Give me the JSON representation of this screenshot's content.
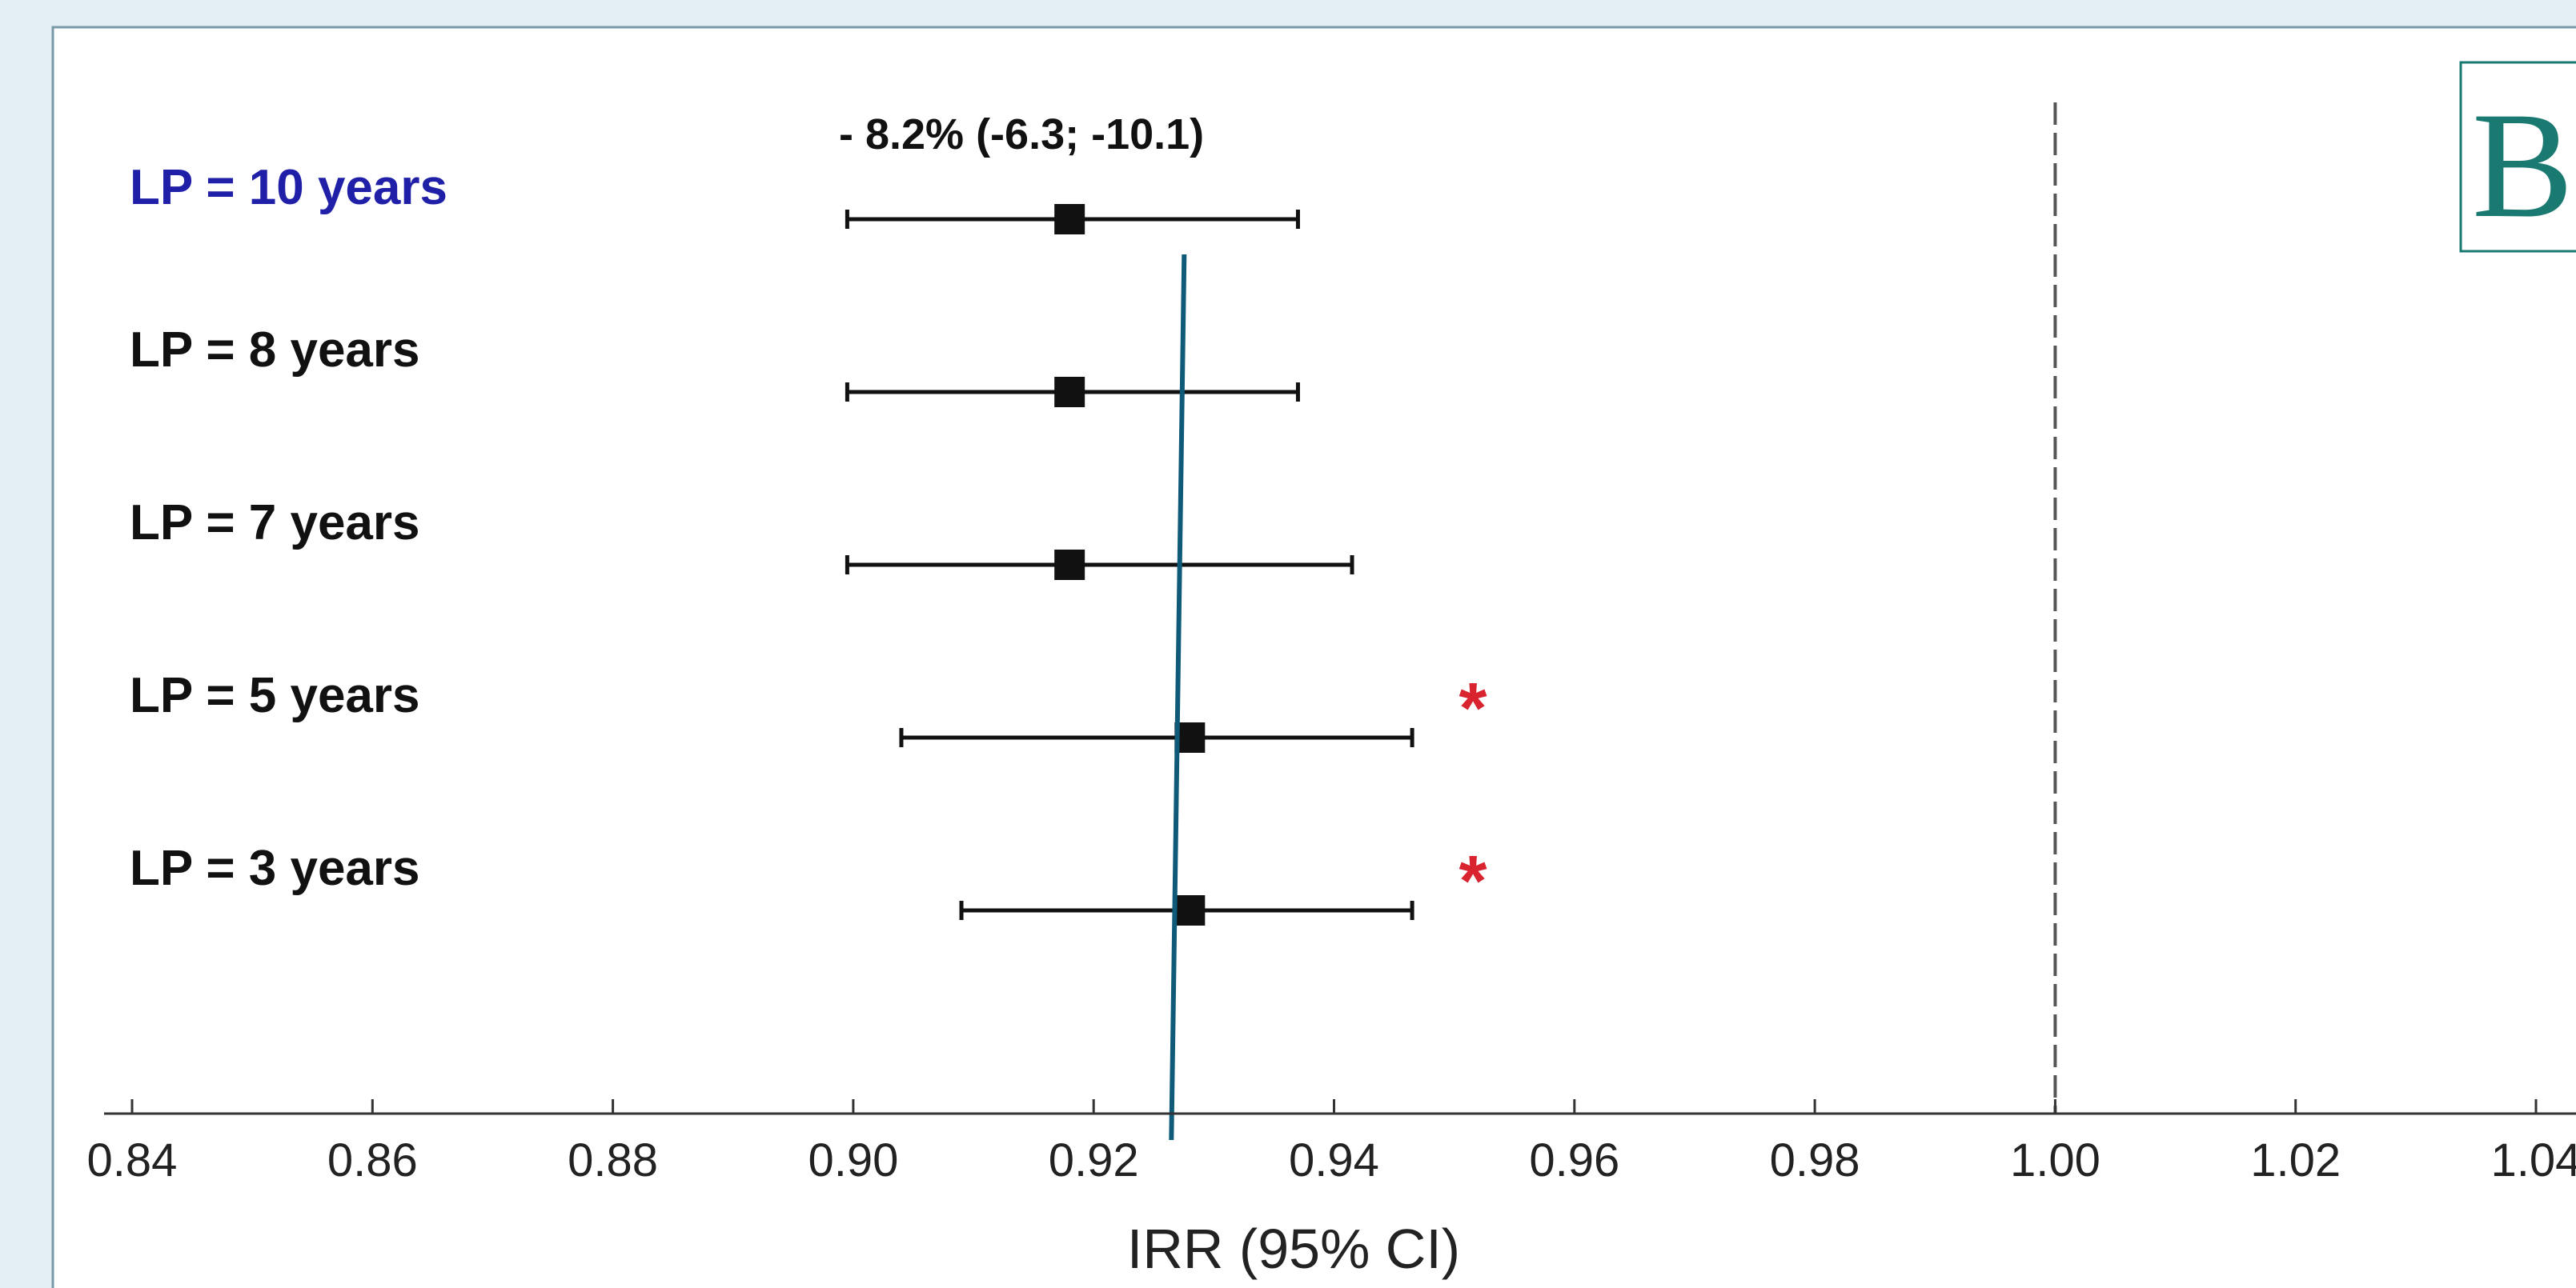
{
  "chart_data": {
    "type": "forest",
    "xlabel": "IRR (95% CI)",
    "xlim": [
      0.84,
      1.04
    ],
    "x_ticks": [
      "0.84",
      "0.86",
      "0.88",
      "0.90",
      "0.92",
      "0.94",
      "0.96",
      "0.98",
      "1.00",
      "1.02",
      "1.04"
    ],
    "panel_label": "B",
    "annotation": "- 8.2% (-6.3;  -10.1)",
    "reference_line": 1.0,
    "pooled_line": 0.927,
    "rows": [
      {
        "label": "LP = 10 years",
        "estimate": 0.918,
        "lower": 0.8995,
        "upper": 0.937,
        "significant": false,
        "highlight": true
      },
      {
        "label": "LP = 8 years",
        "estimate": 0.918,
        "lower": 0.8995,
        "upper": 0.937,
        "significant": false,
        "highlight": false
      },
      {
        "label": "LP = 7 years",
        "estimate": 0.918,
        "lower": 0.8995,
        "upper": 0.9415,
        "significant": false,
        "highlight": false
      },
      {
        "label": "LP = 5 years",
        "estimate": 0.928,
        "lower": 0.904,
        "upper": 0.9465,
        "significant": true,
        "highlight": false
      },
      {
        "label": "LP = 3 years",
        "estimate": 0.928,
        "lower": 0.909,
        "upper": 0.9465,
        "significant": true,
        "highlight": false
      }
    ],
    "significance_marker": "*",
    "colors": {
      "panel_background": "#ffffff",
      "outer_background": "#e3eff4",
      "marks": "#111111",
      "highlight_label": "#1f1fa8",
      "significance": "#d9232e",
      "pooled_line": "#0e5a78",
      "panel_label": "#1a7a72",
      "reference_line": "#555555"
    }
  }
}
